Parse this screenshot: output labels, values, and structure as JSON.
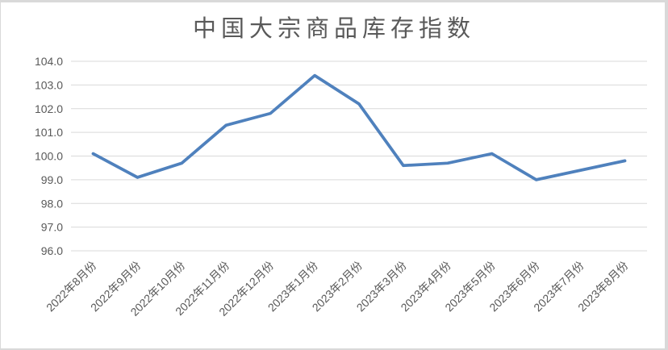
{
  "chart_data": {
    "type": "line",
    "title": "中国大宗商品库存指数",
    "categories": [
      "2022年8月份",
      "2022年9月份",
      "2022年10月份",
      "2022年11月份",
      "2022年12月份",
      "2023年1月份",
      "2023年2月份",
      "2023年3月份",
      "2023年4月份",
      "2023年5月份",
      "2023年6月份",
      "2023年7月份",
      "2023年8月份"
    ],
    "values": [
      100.1,
      99.1,
      99.7,
      101.3,
      101.8,
      103.4,
      102.2,
      99.6,
      99.7,
      100.1,
      99.0,
      99.4,
      99.8
    ],
    "ylim": [
      96.0,
      104.0
    ],
    "ytick_step": 1.0,
    "ytick_labels": [
      "104.0",
      "103.0",
      "102.0",
      "101.0",
      "100.0",
      "99.0",
      "98.0",
      "97.0",
      "96.0"
    ],
    "xlabel": "",
    "ylabel": "",
    "grid": "horizontal",
    "legend": "none",
    "x_label_rotation_deg": -45,
    "colors": {
      "line": "#4F81BD",
      "gridline": "#D9D9D9",
      "axis_text": "#595959",
      "title_text": "#595959",
      "background": "#FFFFFF",
      "frame_border": "#D9D9D9"
    }
  }
}
